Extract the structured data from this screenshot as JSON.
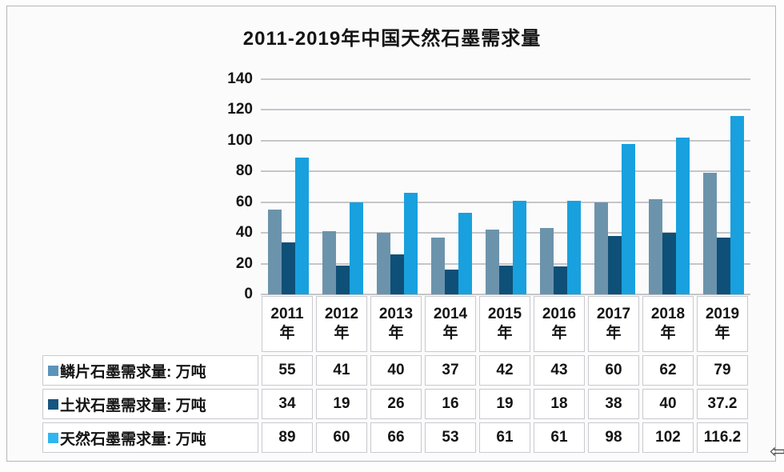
{
  "chart_data": {
    "type": "bar",
    "title": "2011-2019年中国天然石墨需求量",
    "categories": [
      "2011年",
      "2012年",
      "2013年",
      "2014年",
      "2015年",
      "2016年",
      "2017年",
      "2018年",
      "2019年"
    ],
    "series": [
      {
        "name": "鳞片石墨需求量: 万吨",
        "color": "#6C93AC",
        "legend_color": "#5B93B9",
        "values": [
          55,
          41,
          40,
          37,
          42,
          43,
          60,
          62,
          79
        ]
      },
      {
        "name": "土状石墨需求量: 万吨",
        "color": "#0E5078",
        "legend_color": "#16567F",
        "values": [
          34,
          19,
          26,
          16,
          19,
          18,
          38,
          40,
          37.2
        ]
      },
      {
        "name": "天然石墨需求量: 万吨",
        "color": "#18A1DE",
        "legend_color": "#2FB6F0",
        "values": [
          89,
          60,
          66,
          53,
          61,
          61,
          98,
          102,
          116.2
        ]
      }
    ],
    "xlabel": "",
    "ylabel": "",
    "ylim": [
      0,
      140
    ],
    "yticks": [
      0,
      20,
      40,
      60,
      80,
      100,
      120,
      140
    ],
    "grid": true,
    "legend_position": "table-left",
    "data_table_shown": true
  },
  "icons": {
    "corner_arrow": "⇦"
  }
}
